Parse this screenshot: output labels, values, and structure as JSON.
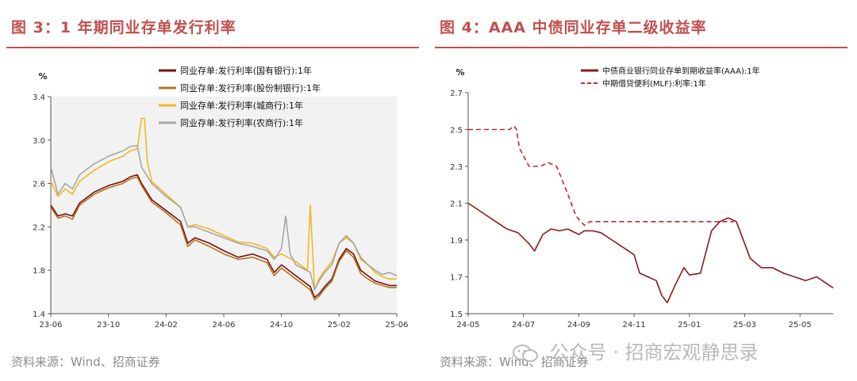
{
  "left": {
    "title": "图 3：1 年期同业存单发行利率",
    "source": "资料来源：Wind、招商证券",
    "chart_data": {
      "type": "line",
      "ylabel": "%",
      "ylim": [
        1.4,
        3.4
      ],
      "yticks": [
        "3.4",
        "3.0",
        "2.6",
        "2.2",
        "1.8",
        "1.4"
      ],
      "xticks": [
        "23-06",
        "23-10",
        "24-02",
        "24-06",
        "24-10",
        "25-02",
        "25-06"
      ],
      "xticks_x": [
        0,
        4,
        8,
        12,
        16,
        20,
        24
      ],
      "xlim": [
        0,
        24
      ],
      "legend_position": "top",
      "series": [
        {
          "name": "同业存单:发行利率(国有银行):1年",
          "color": "#7a1010",
          "x": [
            0,
            0.5,
            1,
            1.5,
            2,
            3,
            4,
            5,
            5.5,
            6,
            6.3,
            7,
            8,
            9,
            9.5,
            10,
            11,
            12,
            13,
            14,
            15,
            15.5,
            16,
            17,
            18,
            18.3,
            18.6,
            19,
            19.5,
            20,
            20.5,
            21,
            21.5,
            22,
            22.5,
            23,
            23.5,
            24
          ],
          "y": [
            2.4,
            2.3,
            2.32,
            2.3,
            2.42,
            2.52,
            2.58,
            2.62,
            2.66,
            2.68,
            2.6,
            2.45,
            2.35,
            2.25,
            2.05,
            2.1,
            2.05,
            1.98,
            1.92,
            1.95,
            1.9,
            1.78,
            1.85,
            1.75,
            1.65,
            1.55,
            1.58,
            1.65,
            1.72,
            1.9,
            2.0,
            1.95,
            1.8,
            1.75,
            1.7,
            1.68,
            1.66,
            1.66
          ]
        },
        {
          "name": "同业存单:发行利率(股份制银行):1年",
          "color": "#b5731c",
          "x": [
            0,
            0.5,
            1,
            1.5,
            2,
            3,
            4,
            5,
            5.5,
            6,
            6.3,
            7,
            8,
            9,
            9.5,
            10,
            11,
            12,
            13,
            14,
            15,
            15.5,
            16,
            17,
            18,
            18.3,
            18.6,
            19,
            19.5,
            20,
            20.5,
            21,
            21.5,
            22,
            22.5,
            23,
            23.5,
            24
          ],
          "y": [
            2.38,
            2.28,
            2.3,
            2.27,
            2.4,
            2.5,
            2.56,
            2.6,
            2.64,
            2.66,
            2.58,
            2.43,
            2.33,
            2.22,
            2.02,
            2.08,
            2.02,
            1.95,
            1.9,
            1.92,
            1.87,
            1.75,
            1.82,
            1.72,
            1.62,
            1.53,
            1.56,
            1.63,
            1.7,
            1.88,
            1.98,
            1.92,
            1.77,
            1.72,
            1.68,
            1.66,
            1.64,
            1.64
          ]
        },
        {
          "name": "同业存单:发行利率(城商行):1年",
          "color": "#f2b91f",
          "x": [
            0,
            0.5,
            1,
            1.5,
            2,
            3,
            4,
            5,
            5.5,
            6,
            6.3,
            6.5,
            6.7,
            7,
            8,
            9,
            9.5,
            10,
            11,
            12,
            13,
            14,
            15,
            15.5,
            16,
            17,
            17.8,
            18,
            18.3,
            18.6,
            19,
            19.5,
            20,
            20.5,
            21,
            21.5,
            22,
            22.5,
            23,
            23.5,
            24
          ],
          "y": [
            2.62,
            2.48,
            2.55,
            2.5,
            2.62,
            2.72,
            2.8,
            2.85,
            2.9,
            2.92,
            3.2,
            3.2,
            2.8,
            2.62,
            2.5,
            2.38,
            2.2,
            2.22,
            2.18,
            2.12,
            2.06,
            2.05,
            2.0,
            1.92,
            1.95,
            1.88,
            1.8,
            2.4,
            1.62,
            1.72,
            1.8,
            1.88,
            2.05,
            2.1,
            2.05,
            1.9,
            1.85,
            1.78,
            1.74,
            1.72,
            1.72
          ]
        },
        {
          "name": "同业存单:发行利率(农商行):1年",
          "color": "#a6a6a6",
          "x": [
            0,
            0.5,
            1,
            1.5,
            2,
            3,
            4,
            5,
            5.5,
            6,
            6.3,
            7,
            8,
            9,
            9.5,
            10,
            11,
            12,
            13,
            14,
            15,
            15.5,
            16,
            16.3,
            16.6,
            17,
            18,
            18.3,
            18.6,
            19,
            19.5,
            20,
            20.5,
            21,
            21.5,
            22,
            22.5,
            23,
            23.5,
            24
          ],
          "y": [
            2.75,
            2.5,
            2.6,
            2.55,
            2.68,
            2.78,
            2.85,
            2.9,
            2.94,
            2.95,
            2.75,
            2.6,
            2.48,
            2.38,
            2.2,
            2.2,
            2.15,
            2.1,
            2.05,
            2.02,
            1.98,
            1.9,
            2.0,
            2.3,
            1.95,
            1.85,
            1.78,
            1.62,
            1.7,
            1.78,
            1.85,
            2.05,
            2.12,
            2.05,
            1.92,
            1.85,
            1.8,
            1.76,
            1.78,
            1.75
          ]
        }
      ]
    }
  },
  "right": {
    "title": "图 4：AAA 中债同业存单二级收益率",
    "source": "资料来源：Wind、招商证券",
    "chart_data": {
      "type": "line",
      "ylabel": "%",
      "ylim": [
        1.5,
        2.7
      ],
      "yticks": [
        "2.7",
        "2.5",
        "2.3",
        "2.1",
        "1.9",
        "1.7",
        "1.5"
      ],
      "xticks": [
        "24-05",
        "24-07",
        "24-09",
        "24-11",
        "25-01",
        "25-03",
        "25-05"
      ],
      "xticks_x": [
        0,
        2,
        4,
        6,
        8,
        10,
        12
      ],
      "xlim": [
        0,
        13.2
      ],
      "legend_position": "top",
      "series": [
        {
          "name": "中债商业银行同业存单到期收益率(AAA):1年",
          "color": "#8b1a1a",
          "dash": false,
          "x": [
            0,
            0.3,
            0.6,
            1,
            1.4,
            1.8,
            2.2,
            2.4,
            2.7,
            3,
            3.3,
            3.6,
            4,
            4.2,
            4.5,
            4.8,
            5.2,
            5.6,
            6,
            6.2,
            6.5,
            6.8,
            7,
            7.2,
            7.5,
            7.8,
            8,
            8.4,
            8.8,
            9.1,
            9.4,
            9.7,
            10,
            10.2,
            10.6,
            11,
            11.4,
            11.8,
            12.2,
            12.6,
            13,
            13.2
          ],
          "y": [
            2.1,
            2.07,
            2.04,
            2.0,
            1.96,
            1.94,
            1.88,
            1.84,
            1.93,
            1.96,
            1.95,
            1.96,
            1.93,
            1.95,
            1.95,
            1.94,
            1.9,
            1.86,
            1.82,
            1.72,
            1.7,
            1.68,
            1.6,
            1.56,
            1.66,
            1.75,
            1.71,
            1.72,
            1.95,
            2.0,
            2.02,
            2.0,
            1.88,
            1.8,
            1.75,
            1.75,
            1.72,
            1.7,
            1.68,
            1.7,
            1.66,
            1.64
          ]
        },
        {
          "name": "中期借贷便利(MLF):利率:1年",
          "color": "#c0282b",
          "dash": true,
          "x": [
            0,
            1.5,
            1.65,
            1.75,
            1.85,
            2.2,
            2.6,
            2.9,
            3.2,
            3.6,
            3.9,
            4.2,
            4.4,
            5,
            6,
            7,
            8,
            9.6
          ],
          "y": [
            2.5,
            2.5,
            2.52,
            2.5,
            2.4,
            2.3,
            2.3,
            2.32,
            2.3,
            2.15,
            2.03,
            1.98,
            2.0,
            2.0,
            2.0,
            2.0,
            2.0,
            2.0
          ]
        }
      ]
    }
  },
  "watermark": "公众号 · 招商宏观静思录"
}
